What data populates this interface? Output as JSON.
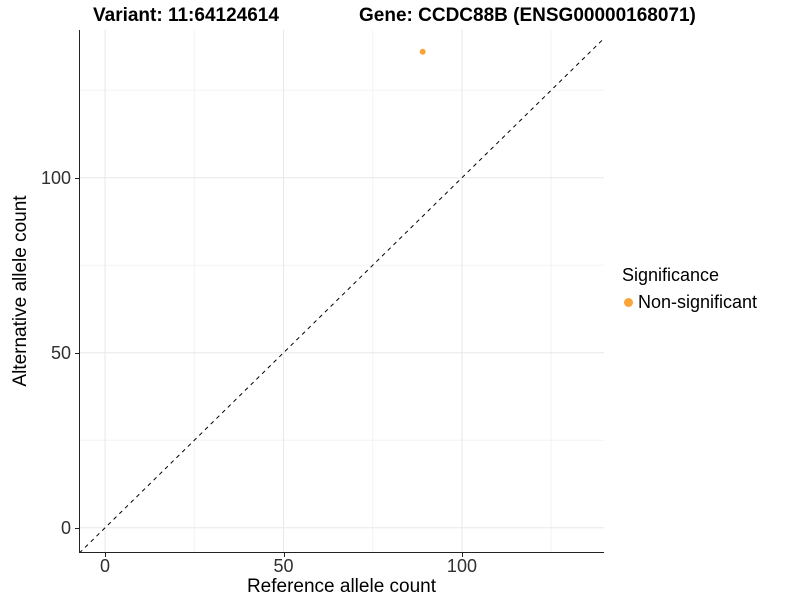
{
  "titles": {
    "variant": "Variant: 11:64124614",
    "gene": "Gene: CCDC88B (ENSG00000168071)"
  },
  "axes": {
    "x": {
      "label": "Reference allele count",
      "ticks": [
        0,
        50,
        100
      ]
    },
    "y": {
      "label": "Alternative allele count",
      "ticks": [
        0,
        50,
        100
      ]
    }
  },
  "legend": {
    "title": "Significance",
    "items": [
      {
        "label": "Non-significant",
        "color": "#FAA43A"
      }
    ]
  },
  "colors": {
    "point": "#FAA43A",
    "grid_major": "#E8E8E8",
    "grid_minor": "#F3F3F3",
    "axis_line": "#222222",
    "tick_label": "#303030",
    "reference_line": "#000000",
    "background": "#FFFFFF"
  },
  "chart_data": {
    "type": "scatter",
    "title": "Variant: 11:64124614 | Gene: CCDC88B (ENSG00000168071)",
    "xlabel": "Reference allele count",
    "ylabel": "Alternative allele count",
    "xlim": [
      -7.3,
      139.8
    ],
    "ylim": [
      -7.2,
      142.2
    ],
    "x_ticks_major": [
      0,
      50,
      100
    ],
    "x_ticks_minor": [
      25,
      75,
      125
    ],
    "y_ticks_major": [
      0,
      50,
      100
    ],
    "y_ticks_minor": [
      25,
      75,
      125
    ],
    "grid": true,
    "legend_position": "right",
    "series": [
      {
        "name": "Non-significant",
        "color": "#FAA43A",
        "points": [
          {
            "x": 89,
            "y": 136
          }
        ]
      }
    ],
    "reference_line": {
      "type": "identity",
      "slope": 1,
      "intercept": 0,
      "style": "dashed",
      "color": "#000000"
    }
  }
}
